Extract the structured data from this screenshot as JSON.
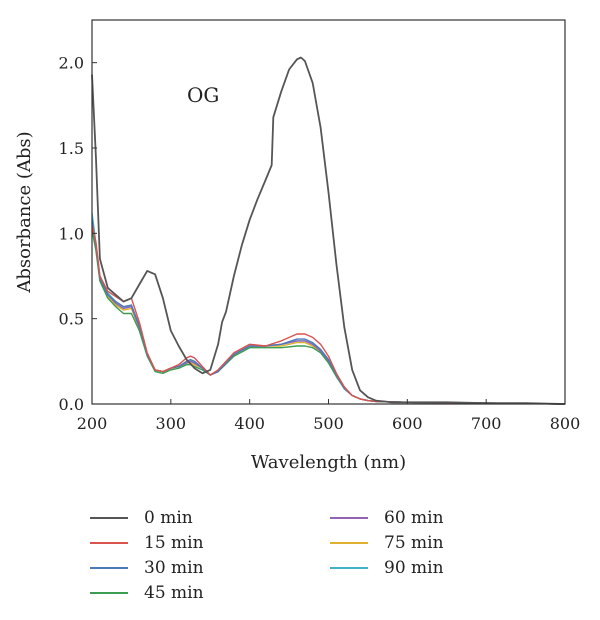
{
  "chart_data": {
    "type": "line",
    "title": "",
    "annotation": "OG",
    "xlabel": "Wavelength (nm)",
    "ylabel": "Absorbance (Abs)",
    "xlim": [
      200,
      800
    ],
    "ylim": [
      0.0,
      2.25
    ],
    "xticks": [
      200,
      300,
      400,
      500,
      600,
      700,
      800
    ],
    "yticks": [
      0.0,
      0.5,
      1.0,
      1.5,
      2.0
    ],
    "xtick_labels": [
      "200",
      "300",
      "400",
      "500",
      "600",
      "700",
      "800"
    ],
    "ytick_labels": [
      "0.0",
      "0.5",
      "1.0",
      "1.5",
      "2.0"
    ],
    "grid": false,
    "legend_position": "bottom",
    "series": [
      {
        "name": "0 min",
        "color": "#555555",
        "x": [
          200,
          205,
          210,
          220,
          230,
          240,
          250,
          260,
          270,
          280,
          290,
          300,
          310,
          320,
          330,
          340,
          350,
          360,
          365,
          370,
          380,
          390,
          400,
          410,
          420,
          428,
          430,
          440,
          450,
          460,
          465,
          470,
          480,
          490,
          500,
          510,
          520,
          530,
          540,
          550,
          560,
          570,
          580,
          600,
          650,
          700,
          750,
          800
        ],
        "y": [
          1.93,
          1.45,
          0.85,
          0.68,
          0.64,
          0.6,
          0.62,
          0.7,
          0.78,
          0.76,
          0.62,
          0.43,
          0.34,
          0.26,
          0.21,
          0.18,
          0.2,
          0.35,
          0.48,
          0.54,
          0.75,
          0.93,
          1.08,
          1.2,
          1.31,
          1.4,
          1.68,
          1.83,
          1.96,
          2.02,
          2.03,
          2.01,
          1.88,
          1.62,
          1.24,
          0.82,
          0.45,
          0.2,
          0.08,
          0.04,
          0.02,
          0.015,
          0.01,
          0.01,
          0.01,
          0.005,
          0.005,
          0.0
        ]
      },
      {
        "name": "15 min",
        "color": "#d9534f",
        "x": [
          200,
          205,
          210,
          220,
          230,
          240,
          250,
          260,
          270,
          280,
          290,
          300,
          310,
          320,
          325,
          330,
          340,
          350,
          360,
          380,
          400,
          420,
          440,
          460,
          470,
          480,
          490,
          500,
          510,
          520,
          530,
          540,
          550,
          560,
          600,
          700,
          800
        ],
        "y": [
          1.05,
          0.95,
          0.75,
          0.66,
          0.63,
          0.6,
          0.62,
          0.48,
          0.3,
          0.2,
          0.19,
          0.21,
          0.23,
          0.27,
          0.28,
          0.27,
          0.22,
          0.17,
          0.2,
          0.3,
          0.35,
          0.34,
          0.37,
          0.41,
          0.41,
          0.39,
          0.35,
          0.28,
          0.18,
          0.1,
          0.05,
          0.03,
          0.02,
          0.015,
          0.01,
          0.005,
          0.0
        ]
      },
      {
        "name": "30 min",
        "color": "#4a7ab8",
        "x": [
          200,
          205,
          210,
          220,
          230,
          240,
          250,
          260,
          270,
          280,
          290,
          300,
          310,
          320,
          325,
          330,
          340,
          350,
          360,
          380,
          400,
          420,
          440,
          460,
          470,
          480,
          490,
          500,
          510,
          520,
          530,
          540,
          550,
          560,
          600,
          700,
          800
        ],
        "y": [
          1.08,
          0.93,
          0.74,
          0.64,
          0.6,
          0.57,
          0.58,
          0.46,
          0.29,
          0.2,
          0.19,
          0.21,
          0.22,
          0.25,
          0.26,
          0.25,
          0.21,
          0.17,
          0.19,
          0.29,
          0.34,
          0.34,
          0.35,
          0.38,
          0.38,
          0.36,
          0.32,
          0.26,
          0.17,
          0.09,
          0.05,
          0.03,
          0.02,
          0.015,
          0.01,
          0.005,
          0.0
        ]
      },
      {
        "name": "45 min",
        "color": "#3c9c4f",
        "x": [
          200,
          205,
          210,
          220,
          230,
          240,
          250,
          260,
          270,
          280,
          290,
          300,
          310,
          320,
          325,
          330,
          340,
          350,
          360,
          380,
          400,
          420,
          440,
          460,
          470,
          480,
          490,
          500,
          510,
          520,
          530,
          540,
          550,
          560,
          600,
          700,
          800
        ],
        "y": [
          1.02,
          0.9,
          0.72,
          0.62,
          0.57,
          0.53,
          0.53,
          0.43,
          0.28,
          0.19,
          0.18,
          0.2,
          0.21,
          0.23,
          0.23,
          0.22,
          0.2,
          0.17,
          0.19,
          0.28,
          0.33,
          0.33,
          0.33,
          0.34,
          0.34,
          0.33,
          0.3,
          0.24,
          0.16,
          0.09,
          0.05,
          0.03,
          0.02,
          0.015,
          0.01,
          0.005,
          0.0
        ]
      },
      {
        "name": "60 min",
        "color": "#8e63b8",
        "x": [
          200,
          205,
          210,
          220,
          230,
          240,
          250,
          260,
          270,
          280,
          290,
          300,
          310,
          320,
          325,
          330,
          340,
          350,
          360,
          380,
          400,
          420,
          440,
          460,
          470,
          480,
          490,
          500,
          510,
          520,
          530,
          540,
          550,
          560,
          600,
          700,
          800
        ],
        "y": [
          1.06,
          0.92,
          0.73,
          0.64,
          0.59,
          0.56,
          0.57,
          0.45,
          0.29,
          0.2,
          0.19,
          0.21,
          0.22,
          0.24,
          0.25,
          0.24,
          0.21,
          0.17,
          0.19,
          0.29,
          0.34,
          0.34,
          0.35,
          0.37,
          0.37,
          0.35,
          0.31,
          0.25,
          0.17,
          0.09,
          0.05,
          0.03,
          0.02,
          0.015,
          0.01,
          0.005,
          0.0
        ]
      },
      {
        "name": "75 min",
        "color": "#e0b12e",
        "x": [
          200,
          205,
          210,
          220,
          230,
          240,
          250,
          260,
          270,
          280,
          290,
          300,
          310,
          320,
          325,
          330,
          340,
          350,
          360,
          380,
          400,
          420,
          440,
          460,
          470,
          480,
          490,
          500,
          510,
          520,
          530,
          540,
          550,
          560,
          600,
          700,
          800
        ],
        "y": [
          1.04,
          0.91,
          0.73,
          0.63,
          0.58,
          0.55,
          0.56,
          0.44,
          0.29,
          0.2,
          0.19,
          0.21,
          0.22,
          0.24,
          0.24,
          0.23,
          0.21,
          0.17,
          0.19,
          0.29,
          0.34,
          0.34,
          0.34,
          0.36,
          0.36,
          0.34,
          0.31,
          0.25,
          0.17,
          0.09,
          0.05,
          0.03,
          0.02,
          0.015,
          0.01,
          0.005,
          0.0
        ]
      },
      {
        "name": "90 min",
        "color": "#3fb3c4",
        "x": [
          200,
          205,
          210,
          220,
          230,
          240,
          250,
          260,
          270,
          280,
          290,
          300,
          310,
          320,
          325,
          330,
          340,
          350,
          360,
          380,
          400,
          420,
          440,
          460,
          470,
          480,
          490,
          500,
          510,
          520,
          530,
          540,
          550,
          560,
          600,
          700,
          800
        ],
        "y": [
          1.12,
          0.94,
          0.75,
          0.65,
          0.6,
          0.57,
          0.57,
          0.45,
          0.29,
          0.2,
          0.19,
          0.21,
          0.22,
          0.24,
          0.25,
          0.24,
          0.21,
          0.17,
          0.19,
          0.29,
          0.34,
          0.34,
          0.35,
          0.37,
          0.37,
          0.35,
          0.31,
          0.25,
          0.17,
          0.09,
          0.05,
          0.03,
          0.02,
          0.015,
          0.01,
          0.005,
          0.0
        ]
      }
    ]
  }
}
